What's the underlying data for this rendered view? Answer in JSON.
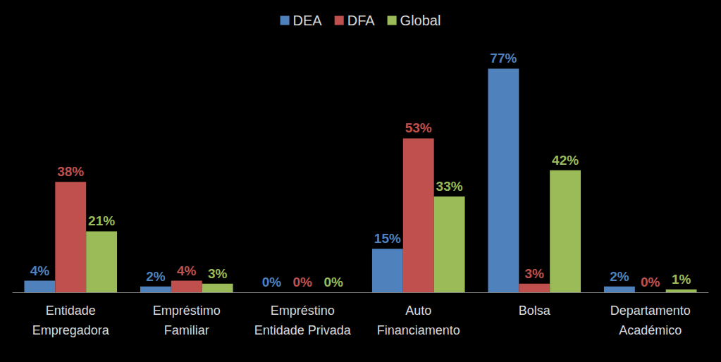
{
  "chart_data": {
    "type": "bar",
    "categories": [
      "Entidade\nEmpregadora",
      "Empréstimo\nFamiliar",
      "Empréstino\nEntidade Privada",
      "Auto\nFinanciamento",
      "Bolsa",
      "Departamento\nAcadémico"
    ],
    "series": [
      {
        "name": "DEA",
        "color": "#4f81bd",
        "values": [
          4,
          2,
          0,
          15,
          77,
          2
        ],
        "value_labels": [
          "4%",
          "2%",
          "0%",
          "15%",
          "77%",
          "2%"
        ]
      },
      {
        "name": "DFA",
        "color": "#c0504d",
        "values": [
          38,
          4,
          0,
          53,
          3,
          0
        ],
        "value_labels": [
          "38%",
          "4%",
          "0%",
          "53%",
          "3%",
          "0%"
        ]
      },
      {
        "name": "Global",
        "color": "#9bbb59",
        "values": [
          21,
          3,
          0,
          33,
          42,
          1
        ],
        "value_labels": [
          "21%",
          "3%",
          "0%",
          "33%",
          "42%",
          "1%"
        ]
      }
    ],
    "ylim": [
      0,
      80
    ],
    "legend": "top",
    "data_labels": true,
    "tick_labels": "x",
    "grid": false
  }
}
